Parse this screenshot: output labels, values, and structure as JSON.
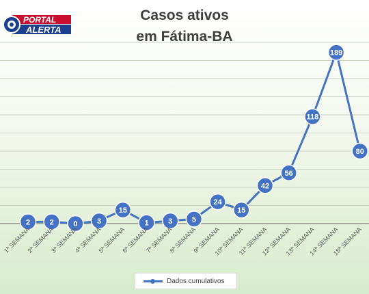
{
  "brand": {
    "line1": "PORTAL",
    "line2": "ALERTA"
  },
  "chart_data": {
    "type": "line",
    "title_lines": [
      "Casos ativos",
      "em Fátima-BA"
    ],
    "categories": [
      "1ª SEMANA",
      "2ª SEMANA",
      "3ª SEMANA",
      "4ª SEMANA",
      "5ª SEMANA",
      "6ª SEMANA",
      "7ª SEMANA",
      "8ª SEMANA",
      "9ª SEMANA",
      "10ª SEMANA",
      "11ª SEMANA",
      "12ª SEMANA",
      "13ª SEMANA",
      "14ª SEMANA",
      "15ª SEMANA"
    ],
    "series": [
      {
        "name": "Dados cumulativos",
        "values": [
          2,
          2,
          0,
          3,
          15,
          1,
          3,
          5,
          24,
          15,
          42,
          56,
          118,
          189,
          80
        ]
      }
    ],
    "ylim": [
      0,
      200
    ],
    "legend_position": "bottom",
    "grid": true,
    "colors": {
      "line": "#4472c4",
      "label_text": "#ffffff",
      "grid": "#c8d3c2"
    }
  }
}
